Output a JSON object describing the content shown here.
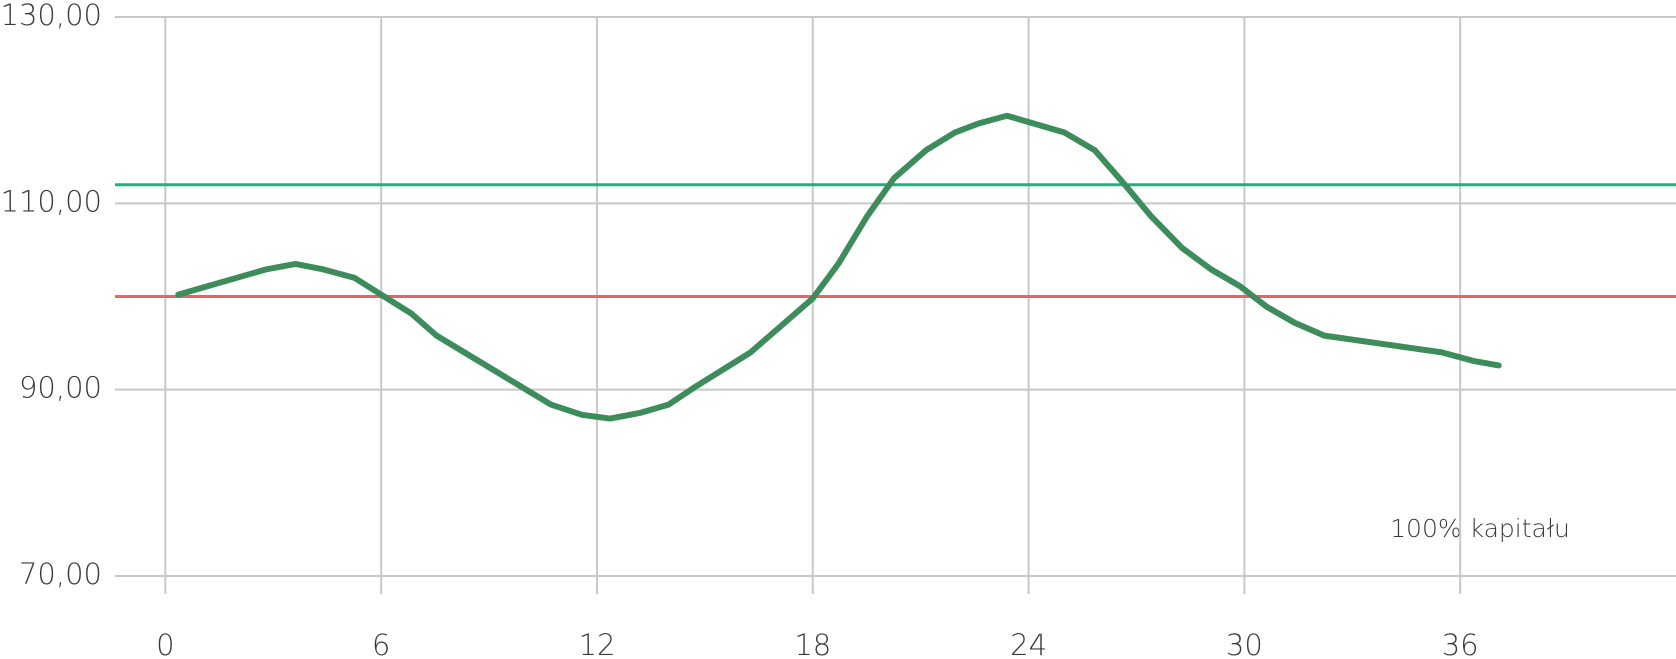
{
  "chart_data": {
    "type": "line",
    "x": [
      0.36,
      2.79,
      3.62,
      4.4,
      5.26,
      6.0,
      6.83,
      7.54,
      10.72,
      11.58,
      12.36,
      13.19,
      13.99,
      14.73,
      16.27,
      18.0,
      18.71,
      19.51,
      20.26,
      21.15,
      21.95,
      22.63,
      23.4,
      25.0,
      25.84,
      26.61,
      27.41,
      28.27,
      29.08,
      29.88,
      30.62,
      31.39,
      32.22,
      35.49,
      36.35,
      37.07
    ],
    "series": [
      {
        "color": "#3d8c5c",
        "values": [
          100.2,
          102.9,
          103.5,
          102.9,
          102.0,
          100.2,
          98.2,
          95.8,
          88.4,
          87.3,
          86.9,
          87.5,
          88.4,
          90.3,
          94.0,
          99.8,
          103.5,
          108.6,
          112.7,
          115.7,
          117.6,
          118.6,
          119.4,
          117.6,
          115.7,
          112.3,
          108.6,
          105.2,
          102.9,
          101.1,
          98.9,
          97.2,
          95.8,
          94.0,
          93.1,
          92.6
        ]
      }
    ],
    "reference_lines": [
      {
        "value": 112,
        "color": "#20b07f"
      },
      {
        "value": 100,
        "color": "#e06767"
      }
    ],
    "annotation": "100% kapitału",
    "xlim": [
      -1.4,
      42
    ],
    "xticks": [
      0,
      6,
      12,
      18,
      24,
      30,
      36
    ],
    "ylim": [
      70,
      130
    ],
    "yticks": [
      {
        "value": 70,
        "label": "70,00"
      },
      {
        "value": 90,
        "label": "90,00"
      },
      {
        "value": 110,
        "label": "110,00"
      },
      {
        "value": 130,
        "label": "130,00"
      }
    ],
    "grid": true
  }
}
